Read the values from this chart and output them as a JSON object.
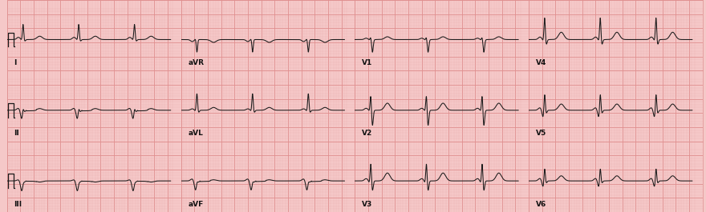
{
  "bg_color": "#f5c8c8",
  "grid_major_color": "#e09090",
  "grid_minor_color": "#eab0b0",
  "ecg_color": "#1a1a1a",
  "label_color": "#111111",
  "fig_width": 8.8,
  "fig_height": 2.65,
  "dpi": 100,
  "heart_rate": 72,
  "sample_rate": 500,
  "lead_params": {
    "I": {
      "p": 0.08,
      "q": -0.03,
      "r": 0.55,
      "s": -0.06,
      "t": 0.12,
      "pq_seg": 0.0,
      "st_seg": 0.0
    },
    "II": {
      "p": 0.07,
      "q": -0.32,
      "r": 0.18,
      "s": -0.04,
      "t": 0.06,
      "pq_seg": 0.0,
      "st_seg": -0.02
    },
    "III": {
      "p": 0.04,
      "q": -0.36,
      "r": 0.05,
      "s": -0.02,
      "t": -0.04,
      "pq_seg": 0.0,
      "st_seg": -0.01
    },
    "aVR": {
      "p": -0.07,
      "q": 0.04,
      "r": -0.45,
      "s": 0.0,
      "t": -0.1,
      "pq_seg": 0.0,
      "st_seg": 0.0
    },
    "aVL": {
      "p": 0.05,
      "q": -0.04,
      "r": 0.6,
      "s": -0.08,
      "t": 0.1,
      "pq_seg": 0.0,
      "st_seg": 0.0
    },
    "aVF": {
      "p": 0.07,
      "q": -0.34,
      "r": 0.1,
      "s": -0.03,
      "t": 0.04,
      "pq_seg": 0.0,
      "st_seg": -0.02
    },
    "V1": {
      "p": 0.05,
      "q": -0.02,
      "r": 0.1,
      "s": -0.45,
      "t": 0.1,
      "pq_seg": 0.0,
      "st_seg": 0.0
    },
    "V2": {
      "p": 0.07,
      "q": -0.04,
      "r": 0.55,
      "s": -0.55,
      "t": 0.25,
      "pq_seg": 0.0,
      "st_seg": 0.0
    },
    "V3": {
      "p": 0.08,
      "q": -0.08,
      "r": 0.65,
      "s": -0.35,
      "t": 0.28,
      "pq_seg": 0.0,
      "st_seg": 0.0
    },
    "V4": {
      "p": 0.09,
      "q": -0.06,
      "r": 0.8,
      "s": -0.18,
      "t": 0.26,
      "pq_seg": 0.0,
      "st_seg": 0.0
    },
    "V5": {
      "p": 0.09,
      "q": -0.28,
      "r": 0.7,
      "s": -0.1,
      "t": 0.22,
      "pq_seg": 0.0,
      "st_seg": 0.0
    },
    "V6": {
      "p": 0.09,
      "q": -0.24,
      "r": 0.55,
      "s": -0.07,
      "t": 0.18,
      "pq_seg": 0.0,
      "st_seg": 0.0
    }
  },
  "layout": [
    {
      "lead": "I",
      "col": 0,
      "row": 0
    },
    {
      "lead": "II",
      "col": 0,
      "row": 1
    },
    {
      "lead": "III",
      "col": 0,
      "row": 2
    },
    {
      "lead": "aVR",
      "col": 1,
      "row": 0
    },
    {
      "lead": "aVL",
      "col": 1,
      "row": 1
    },
    {
      "lead": "aVF",
      "col": 1,
      "row": 2
    },
    {
      "lead": "V1",
      "col": 2,
      "row": 0
    },
    {
      "lead": "V2",
      "col": 2,
      "row": 1
    },
    {
      "lead": "V3",
      "col": 2,
      "row": 2
    },
    {
      "lead": "V4",
      "col": 3,
      "row": 0
    },
    {
      "lead": "V5",
      "col": 3,
      "row": 1
    },
    {
      "lead": "V6",
      "col": 3,
      "row": 2
    }
  ]
}
